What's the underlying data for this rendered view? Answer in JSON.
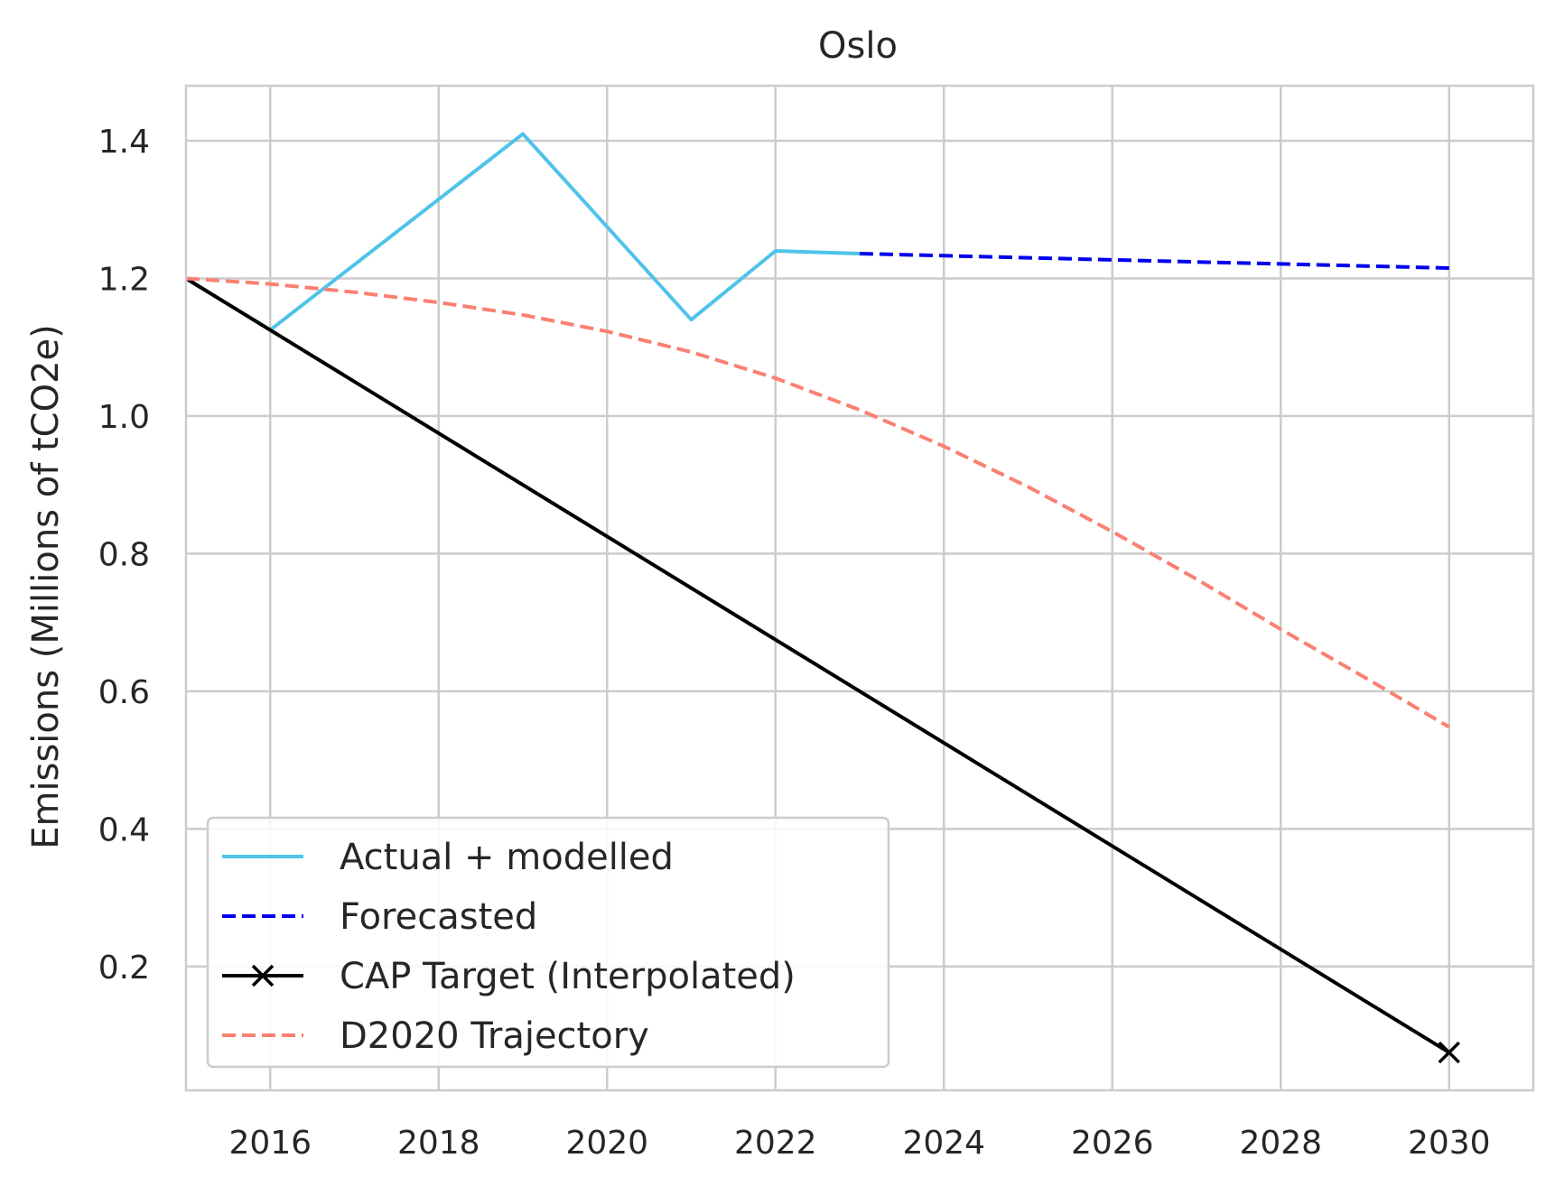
{
  "chart_data": {
    "type": "line",
    "title": "Oslo",
    "xlabel": "",
    "ylabel": "Emissions (Millions of tCO2e)",
    "xlim": [
      2015,
      2031
    ],
    "ylim": [
      0.02,
      1.48
    ],
    "xticks": [
      2016,
      2018,
      2020,
      2022,
      2024,
      2026,
      2028,
      2030
    ],
    "yticks": [
      0.2,
      0.4,
      0.6,
      0.8,
      1.0,
      1.2,
      1.4
    ],
    "xtick_labels": [
      "2016",
      "2018",
      "2020",
      "2022",
      "2024",
      "2026",
      "2028",
      "2030"
    ],
    "ytick_labels": [
      "0.2",
      "0.4",
      "0.6",
      "0.8",
      "1.0",
      "1.2",
      "1.4"
    ],
    "grid": true,
    "legend_position": "lower-left",
    "series": [
      {
        "name": "Actual + modelled",
        "color": "#4fc3ea",
        "style": "solid",
        "marker": "none",
        "x": [
          2015,
          2016,
          2017,
          2018,
          2019,
          2020,
          2021,
          2022,
          2023
        ],
        "y": [
          1.2,
          1.125,
          1.22,
          1.315,
          1.41,
          1.275,
          1.14,
          1.24,
          1.236
        ]
      },
      {
        "name": "Forecasted",
        "color": "#0000ee",
        "style": "dashed",
        "marker": "none",
        "x": [
          2023,
          2024,
          2025,
          2026,
          2027,
          2028,
          2029,
          2030
        ],
        "y": [
          1.236,
          1.233,
          1.23,
          1.227,
          1.224,
          1.221,
          1.218,
          1.215
        ]
      },
      {
        "name": "CAP Target (Interpolated)",
        "color": "#000000",
        "style": "solid",
        "marker": "x-end",
        "x": [
          2015,
          2030
        ],
        "y": [
          1.2,
          0.075
        ]
      },
      {
        "name": "D2020 Trajectory",
        "color": "#fa8072",
        "style": "dashed",
        "marker": "none",
        "x": [
          2015,
          2016,
          2017,
          2018,
          2019,
          2020,
          2021,
          2022,
          2023,
          2024,
          2025,
          2026,
          2027,
          2028,
          2029,
          2030
        ],
        "y": [
          1.2,
          1.192,
          1.18,
          1.165,
          1.147,
          1.123,
          1.093,
          1.055,
          1.009,
          0.956,
          0.897,
          0.832,
          0.763,
          0.69,
          0.62,
          0.548
        ]
      }
    ]
  }
}
